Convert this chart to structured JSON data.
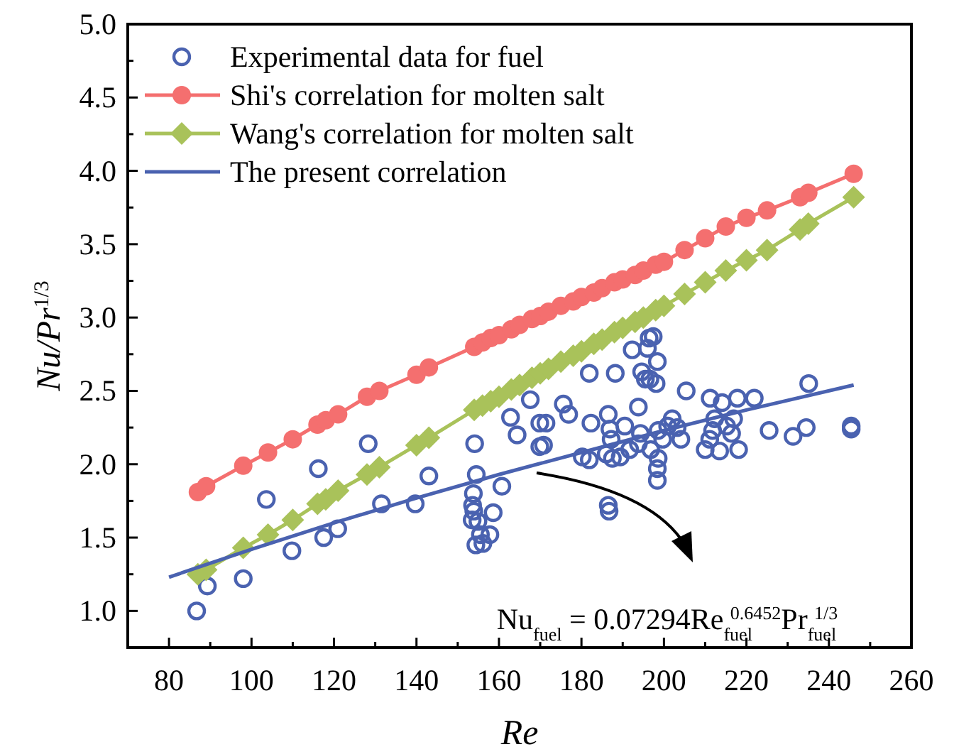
{
  "chart_data": {
    "type": "scatter",
    "xlabel": "Re",
    "ylabel": "Nu/Pr$^{1/3}$",
    "xlim": [
      70,
      260
    ],
    "ylim": [
      0.75,
      5.0
    ],
    "xticks": [
      80,
      {
        "value": 90,
        "label": null
      },
      100,
      {
        "value": 110,
        "label": null
      },
      120,
      {
        "value": 130,
        "label": null
      },
      140,
      {
        "value": 150,
        "label": null
      },
      160,
      {
        "value": 170,
        "label": null
      },
      180,
      {
        "value": 190,
        "label": null
      },
      200,
      {
        "value": 210,
        "label": null
      },
      220,
      {
        "value": 230,
        "label": null
      },
      240,
      {
        "value": 250,
        "label": null
      },
      260
    ],
    "yticks": [
      {
        "value": 1,
        "label": "1.0"
      },
      {
        "value": 1.25,
        "label": null
      },
      {
        "value": 1.5,
        "label": "1.5"
      },
      {
        "value": 1.75,
        "label": null
      },
      {
        "value": 2,
        "label": "2.0"
      },
      {
        "value": 2.25,
        "label": null
      },
      {
        "value": 2.5,
        "label": "2.5"
      },
      {
        "value": 2.75,
        "label": null
      },
      {
        "value": 3,
        "label": "3.0"
      },
      {
        "value": 3.25,
        "label": null
      },
      {
        "value": 3.5,
        "label": "3.5"
      },
      {
        "value": 3.75,
        "label": null
      },
      {
        "value": 4,
        "label": "4.0"
      },
      {
        "value": 4.25,
        "label": null
      },
      {
        "value": 4.5,
        "label": "4.5"
      },
      {
        "value": 4.75,
        "label": null
      },
      {
        "value": 5,
        "label": "5.0"
      }
    ],
    "legend": "top left",
    "series": [
      {
        "name": "Experimental data for fuel",
        "marker": "circle",
        "color": "#4a62b0",
        "x": [
          86.7,
          89.3,
          98.0,
          103.6,
          109.8,
          116.2,
          117.5,
          120.9,
          128.3,
          131.5,
          139.7,
          143.0,
          154.1,
          154.5,
          153.8,
          153.6,
          153.9,
          153.5,
          154.9,
          155.5,
          154.4,
          156.1,
          157.8,
          158.6,
          160.7,
          162.8,
          164.4,
          167.6,
          169.9,
          169.9,
          170.8,
          171.4,
          175.6,
          176.9,
          181.9,
          182.3,
          180.2,
          181.9,
          186.5,
          186.9,
          187.2,
          188.2,
          186.0,
          187.5,
          189.4,
          190.5,
          191.7,
          186.5,
          186.7,
          192.3,
          193.8,
          194.6,
          194.3,
          193.8,
          195.5,
          196.4,
          197.4,
          196.0,
          198.4,
          198.1,
          196.6,
          198.6,
          196.8,
          198.6,
          198.4,
          198.4,
          199.7,
          200.9,
          202.0,
          203.2,
          204.1,
          205.4,
          211.2,
          214.1,
          217.8,
          221.9,
          216.9,
          216.4,
          211.8,
          210.0,
          213.5,
          218.1,
          211.1,
          212.3,
          215.2,
          225.5,
          231.3,
          234.5,
          235.1,
          245.4,
          245.4
        ],
        "values": [
          1.0,
          1.17,
          1.22,
          1.76,
          1.41,
          1.97,
          1.5,
          1.56,
          2.14,
          1.73,
          1.73,
          1.92,
          2.14,
          1.93,
          1.8,
          1.72,
          1.68,
          1.62,
          1.61,
          1.52,
          1.45,
          1.46,
          1.52,
          1.67,
          1.85,
          2.32,
          2.2,
          2.44,
          2.28,
          2.12,
          2.13,
          2.28,
          2.41,
          2.34,
          2.62,
          2.28,
          2.05,
          2.03,
          2.34,
          2.24,
          2.17,
          2.62,
          2.07,
          2.04,
          2.05,
          2.26,
          2.1,
          1.72,
          1.68,
          2.78,
          2.39,
          2.63,
          2.21,
          2.14,
          2.58,
          2.86,
          2.87,
          2.79,
          2.7,
          2.55,
          2.58,
          2.23,
          2.1,
          2.04,
          1.97,
          1.89,
          2.17,
          2.26,
          2.31,
          2.25,
          2.17,
          2.5,
          2.45,
          2.42,
          2.45,
          2.45,
          2.31,
          2.21,
          2.23,
          2.1,
          2.09,
          2.1,
          2.17,
          2.31,
          2.26,
          2.23,
          2.19,
          2.25,
          2.55,
          2.26,
          2.24
        ]
      },
      {
        "name": "Shi's correlation for molten salt",
        "type": "line",
        "marker": "circle",
        "color": "#f46f6f",
        "x": [
          87,
          89,
          98,
          104,
          110,
          116,
          118,
          121,
          128,
          131,
          140,
          143,
          154,
          156,
          158,
          160,
          163,
          165,
          168,
          170,
          172,
          175,
          178,
          180,
          183,
          185,
          188,
          190,
          193,
          195,
          198,
          200,
          205,
          210,
          215,
          220,
          225,
          233,
          235,
          246
        ],
        "values": [
          1.81,
          1.85,
          1.99,
          2.08,
          2.17,
          2.27,
          2.3,
          2.34,
          2.46,
          2.5,
          2.61,
          2.66,
          2.8,
          2.83,
          2.86,
          2.88,
          2.92,
          2.95,
          2.99,
          3.01,
          3.04,
          3.08,
          3.11,
          3.14,
          3.17,
          3.2,
          3.24,
          3.26,
          3.29,
          3.32,
          3.36,
          3.38,
          3.46,
          3.54,
          3.62,
          3.68,
          3.73,
          3.82,
          3.85,
          3.98
        ]
      },
      {
        "name": "Wang's correlation for molten salt",
        "type": "line",
        "marker": "diamond",
        "color": "#a9c25a",
        "x": [
          87,
          89,
          98,
          104,
          110,
          116,
          118,
          121,
          128,
          131,
          140,
          143,
          154,
          156,
          158,
          160,
          163,
          165,
          168,
          170,
          172,
          175,
          178,
          180,
          183,
          185,
          188,
          190,
          193,
          195,
          198,
          200,
          205,
          210,
          215,
          220,
          225,
          233,
          235,
          246
        ],
        "values": [
          1.25,
          1.28,
          1.43,
          1.52,
          1.62,
          1.73,
          1.76,
          1.82,
          1.93,
          1.98,
          2.13,
          2.18,
          2.37,
          2.4,
          2.43,
          2.46,
          2.51,
          2.54,
          2.59,
          2.62,
          2.65,
          2.7,
          2.74,
          2.77,
          2.82,
          2.85,
          2.9,
          2.93,
          2.97,
          3.0,
          3.05,
          3.08,
          3.16,
          3.24,
          3.32,
          3.39,
          3.46,
          3.6,
          3.64,
          3.82
        ]
      },
      {
        "name": "The present correlation",
        "type": "line",
        "marker": "none",
        "color": "#4a62b0",
        "x": [
          80,
          100,
          120,
          140,
          160,
          180,
          200,
          220,
          246
        ],
        "values": [
          1.23,
          1.42,
          1.6,
          1.77,
          1.93,
          2.08,
          2.23,
          2.37,
          2.54
        ]
      }
    ],
    "annotations": [
      "Nu$_{fuel}$ = 0.07294Re$_{fuel}$$^{0.6452}$Pr$_{fuel}$$^{1/3}$"
    ]
  }
}
